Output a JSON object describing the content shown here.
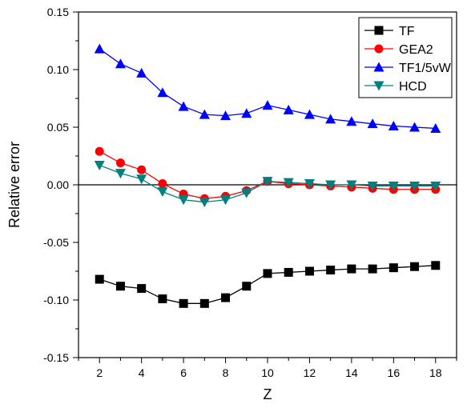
{
  "chart_data": {
    "type": "line",
    "xlabel": "Z",
    "ylabel": "Relative error",
    "xlim": [
      1,
      19
    ],
    "ylim": [
      -0.15,
      0.15
    ],
    "x_ticks": [
      2,
      4,
      6,
      8,
      10,
      12,
      14,
      16,
      18
    ],
    "x_tick_labels": [
      "2",
      "4",
      "6",
      "8",
      "10",
      "12",
      "14",
      "16",
      "18"
    ],
    "y_ticks": [
      -0.15,
      -0.1,
      -0.05,
      0.0,
      0.05,
      0.1,
      0.15
    ],
    "y_tick_labels": [
      "-0.15",
      "-0.10",
      "-0.05",
      "0.00",
      "0.05",
      "0.10",
      "0.15"
    ],
    "zero_line": true,
    "grid": false,
    "legend_position": "top-right",
    "x": [
      2,
      3,
      4,
      5,
      6,
      7,
      8,
      9,
      10,
      11,
      12,
      13,
      14,
      15,
      16,
      17,
      18
    ],
    "series": [
      {
        "name": "TF",
        "color": "#000000",
        "marker": "square",
        "values": [
          -0.082,
          -0.088,
          -0.09,
          -0.099,
          -0.103,
          -0.103,
          -0.098,
          -0.088,
          -0.077,
          -0.076,
          -0.075,
          -0.074,
          -0.073,
          -0.073,
          -0.072,
          -0.071,
          -0.07
        ]
      },
      {
        "name": "GEA2",
        "color": "#ff0000",
        "marker": "circle",
        "values": [
          0.029,
          0.019,
          0.013,
          0.001,
          -0.008,
          -0.012,
          -0.01,
          -0.005,
          0.003,
          0.001,
          0.0,
          -0.001,
          -0.002,
          -0.003,
          -0.004,
          -0.004,
          -0.004
        ]
      },
      {
        "name": "TF1/5vW",
        "color": "#0000ff",
        "marker": "triangle-up",
        "values": [
          0.118,
          0.105,
          0.097,
          0.08,
          0.068,
          0.061,
          0.06,
          0.062,
          0.069,
          0.065,
          0.061,
          0.057,
          0.055,
          0.053,
          0.051,
          0.05,
          0.049
        ]
      },
      {
        "name": "HCD",
        "color": "#008080",
        "marker": "triangle-down",
        "values": [
          0.017,
          0.01,
          0.005,
          -0.006,
          -0.013,
          -0.015,
          -0.013,
          -0.007,
          0.003,
          0.002,
          0.001,
          0.0,
          0.0,
          -0.001,
          -0.001,
          -0.001,
          -0.001
        ]
      }
    ]
  }
}
